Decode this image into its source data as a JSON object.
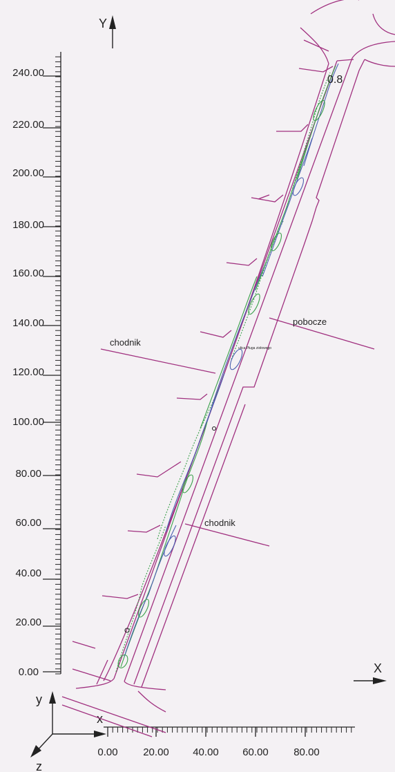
{
  "axes": {
    "y_letter": "Y",
    "x_letter": "X",
    "gizmo": {
      "y": "y",
      "x": "x",
      "z": "z"
    }
  },
  "y_ticks": [
    "0.00",
    "20.00",
    "40.00",
    "60.00",
    "80.00",
    "100.00",
    "120.00",
    "140.00",
    "160.00",
    "180.00",
    "200.00",
    "220.00",
    "240.00"
  ],
  "x_ticks": [
    "0.00",
    "20.00",
    "40.00",
    "60.00",
    "80.00"
  ],
  "labels": {
    "chodnik_top": "chodnik",
    "chodnik_bottom": "chodnik",
    "pobocze": "pobocze",
    "value": "0.8",
    "street": "ulica Pługa ziołowego"
  },
  "colors": {
    "road_lines": "#a0307f",
    "contour_green": "#3aa04a",
    "contour_blue": "#4a5fb0",
    "axis": "#222222"
  }
}
